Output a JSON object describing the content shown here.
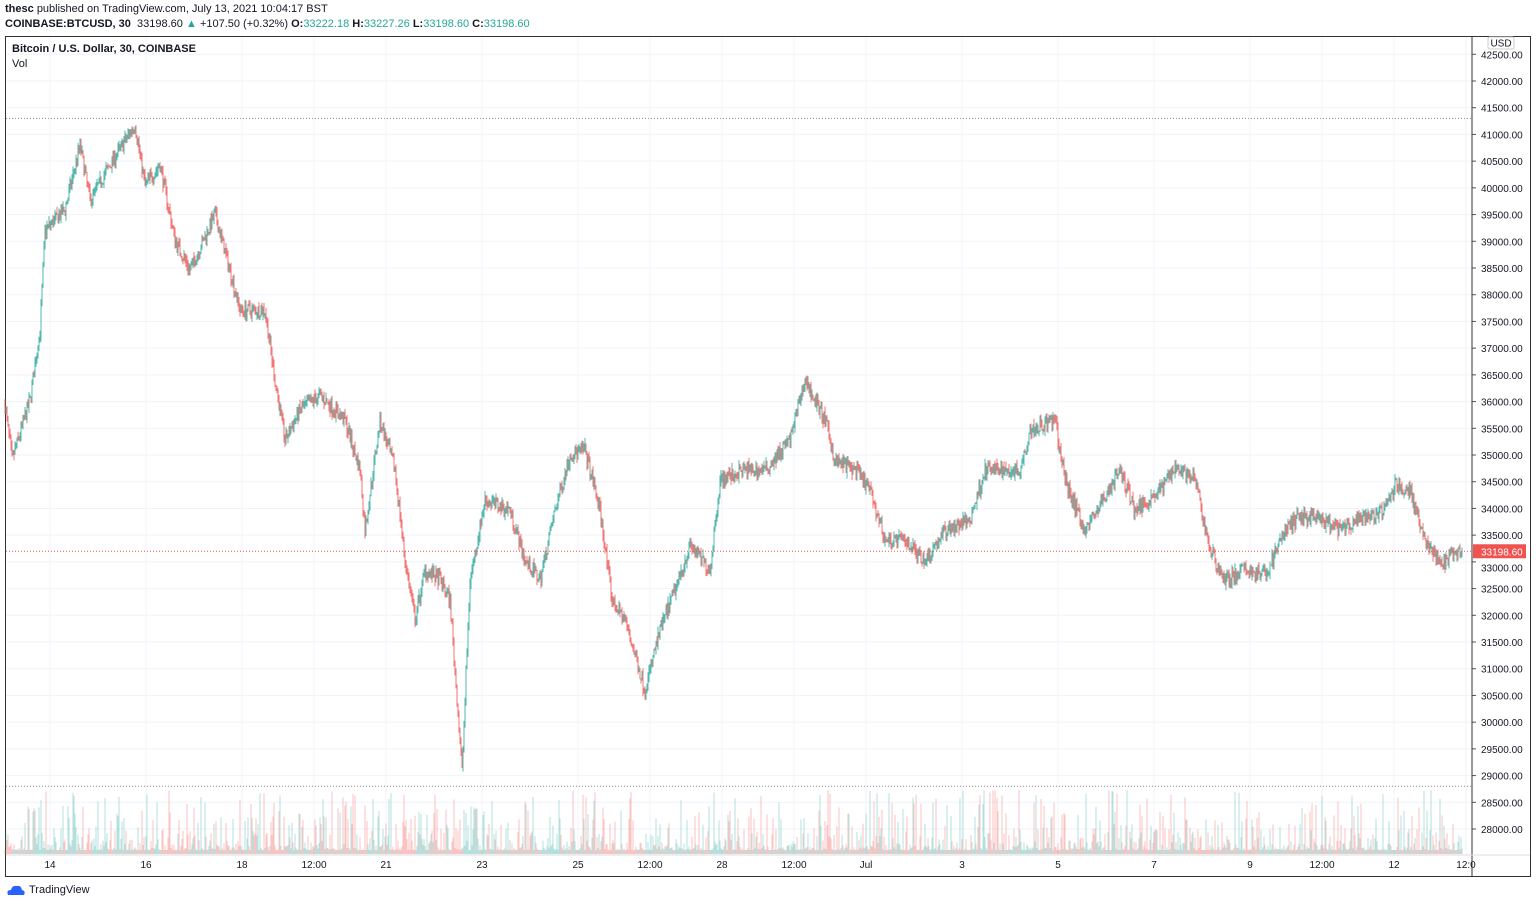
{
  "header": {
    "publisher": "thesc",
    "published_text": "published on TradingView.com, July 13, 2021 10:04:17 BST",
    "symbol": "COINBASE:BTCUSD, 30",
    "last": "33198.60",
    "change": "+107.50 (+0.32%)",
    "o_label": "O:",
    "open": "33222.18",
    "h_label": "H:",
    "high": "33227.26",
    "l_label": "L:",
    "low": "33198.60",
    "c_label": "C:",
    "close": "33198.60",
    "up_icon": "triangle-up-icon"
  },
  "chart_title": "Bitcoin / U.S. Dollar, 30, COINBASE",
  "volume_label": "Vol",
  "footer": {
    "brand": "TradingView",
    "icon": "tradingview-cloud-logo"
  },
  "colors": {
    "up": "#26a69a",
    "down": "#ef5350",
    "grid": "#f0f3fa"
  },
  "chart_data": {
    "type": "candlestick",
    "interval": "30",
    "currency": "USD",
    "y_ticks": [
      "42500.00",
      "42000.00",
      "41500.00",
      "41000.00",
      "40500.00",
      "40000.00",
      "39500.00",
      "39000.00",
      "38500.00",
      "38000.00",
      "37500.00",
      "37000.00",
      "36500.00",
      "36000.00",
      "35500.00",
      "35000.00",
      "34500.00",
      "34000.00",
      "33500.00",
      "33000.00",
      "32500.00",
      "32000.00",
      "31500.00",
      "31000.00",
      "30500.00",
      "30000.00",
      "29500.00",
      "29000.00",
      "28500.00",
      "28000.00"
    ],
    "x_ticks": [
      [
        "14",
        "2021-06-14T00:00"
      ],
      [
        "16",
        "2021-06-16T00:00"
      ],
      [
        "18",
        "2021-06-18T00:00"
      ],
      [
        "12:00",
        "2021-06-19T12:00"
      ],
      [
        "21",
        "2021-06-21T00:00"
      ],
      [
        "23",
        "2021-06-23T00:00"
      ],
      [
        "25",
        "2021-06-25T00:00"
      ],
      [
        "12:00",
        "2021-06-26T12:00"
      ],
      [
        "28",
        "2021-06-28T00:00"
      ],
      [
        "12:00",
        "2021-06-29T12:00"
      ],
      [
        "Jul",
        "2021-07-01T00:00"
      ],
      [
        "3",
        "2021-07-03T00:00"
      ],
      [
        "5",
        "2021-07-05T00:00"
      ],
      [
        "7",
        "2021-07-07T00:00"
      ],
      [
        "9",
        "2021-07-09T00:00"
      ],
      [
        "12:00",
        "2021-07-10T12:00"
      ],
      [
        "12",
        "2021-07-12T00:00"
      ],
      [
        "12:0",
        "2021-07-13T12:00"
      ]
    ],
    "current_price": "33198.60",
    "range_high": 41300,
    "range_low": 28800,
    "price_path": [
      [
        "2021-06-13T01:30",
        35935
      ],
      [
        "2021-06-13T05:00",
        34905
      ],
      [
        "2021-06-13T14:00",
        36030
      ],
      [
        "2021-06-13T19:00",
        37340
      ],
      [
        "2021-06-13T21:30",
        39210
      ],
      [
        "2021-06-14T07:30",
        39590
      ],
      [
        "2021-06-14T15:00",
        40800
      ],
      [
        "2021-06-14T20:00",
        39770
      ],
      [
        "2021-06-15T06:00",
        40430
      ],
      [
        "2021-06-15T18:30",
        41180
      ],
      [
        "2021-06-15T23:30",
        40050
      ],
      [
        "2021-06-16T07:00",
        40430
      ],
      [
        "2021-06-16T14:30",
        39020
      ],
      [
        "2021-06-16T22:00",
        38460
      ],
      [
        "2021-06-17T10:30",
        39500
      ],
      [
        "2021-06-17T18:00",
        38460
      ],
      [
        "2021-06-17T23:00",
        37710
      ],
      [
        "2021-06-18T11:30",
        37710
      ],
      [
        "2021-06-18T16:30",
        36400
      ],
      [
        "2021-06-18T21:30",
        35280
      ],
      [
        "2021-06-19T05:00",
        35840
      ],
      [
        "2021-06-19T15:00",
        36120
      ],
      [
        "2021-06-20T03:30",
        35650
      ],
      [
        "2021-06-20T11:00",
        34720
      ],
      [
        "2021-06-20T13:30",
        33590
      ],
      [
        "2021-06-20T21:00",
        35650
      ],
      [
        "2021-06-21T04:30",
        34720
      ],
      [
        "2021-06-21T09:30",
        33030
      ],
      [
        "2021-06-21T14:30",
        31910
      ],
      [
        "2021-06-21T19:30",
        32850
      ],
      [
        "2021-06-22T03:00",
        32660
      ],
      [
        "2021-06-22T08:00",
        32280
      ],
      [
        "2021-06-22T14:00",
        29100
      ],
      [
        "2021-06-22T18:00",
        32660
      ],
      [
        "2021-06-23T01:30",
        34160
      ],
      [
        "2021-06-23T14:00",
        33970
      ],
      [
        "2021-06-23T21:30",
        33030
      ],
      [
        "2021-06-24T05:00",
        32660
      ],
      [
        "2021-06-24T12:30",
        33970
      ],
      [
        "2021-06-24T20:00",
        35000
      ],
      [
        "2021-06-25T03:30",
        35090
      ],
      [
        "2021-06-25T11:00",
        33970
      ],
      [
        "2021-06-25T17:00",
        32280
      ],
      [
        "2021-06-25T23:30",
        31910
      ],
      [
        "2021-06-26T09:30",
        30600
      ],
      [
        "2021-06-26T17:00",
        31720
      ],
      [
        "2021-06-27T00:30",
        32470
      ],
      [
        "2021-06-27T08:00",
        33310
      ],
      [
        "2021-06-27T18:00",
        32850
      ],
      [
        "2021-06-27T23:00",
        34530
      ],
      [
        "2021-06-28T11:30",
        34720
      ],
      [
        "2021-06-28T21:30",
        34720
      ],
      [
        "2021-06-29T10:00",
        35280
      ],
      [
        "2021-06-29T17:30",
        36400
      ],
      [
        "2021-06-30T03:30",
        35650
      ],
      [
        "2021-06-30T08:30",
        34900
      ],
      [
        "2021-06-30T18:30",
        34720
      ],
      [
        "2021-07-01T02:00",
        34340
      ],
      [
        "2021-07-01T09:30",
        33410
      ],
      [
        "2021-07-01T19:30",
        33410
      ],
      [
        "2021-07-02T05:30",
        33030
      ],
      [
        "2021-07-02T15:30",
        33590
      ],
      [
        "2021-07-03T04:00",
        33780
      ],
      [
        "2021-07-03T11:30",
        34720
      ],
      [
        "2021-07-04T05:00",
        34720
      ],
      [
        "2021-07-04T10:00",
        35470
      ],
      [
        "2021-07-04T22:30",
        35650
      ],
      [
        "2021-07-05T03:30",
        34530
      ],
      [
        "2021-07-05T13:30",
        33590
      ],
      [
        "2021-07-05T21:00",
        34060
      ],
      [
        "2021-07-06T07:00",
        34720
      ],
      [
        "2021-07-06T14:30",
        33970
      ],
      [
        "2021-07-07T03:00",
        34340
      ],
      [
        "2021-07-07T10:30",
        34810
      ],
      [
        "2021-07-07T20:30",
        34530
      ],
      [
        "2021-07-08T04:00",
        33220
      ],
      [
        "2021-07-08T11:30",
        32660
      ],
      [
        "2021-07-08T21:30",
        32850
      ],
      [
        "2021-07-09T07:30",
        32750
      ],
      [
        "2021-07-09T17:30",
        33590
      ],
      [
        "2021-07-10T01:00",
        33870
      ],
      [
        "2021-07-10T11:00",
        33780
      ],
      [
        "2021-07-10T21:00",
        33590
      ],
      [
        "2021-07-11T07:00",
        33780
      ],
      [
        "2021-07-11T19:30",
        33970
      ],
      [
        "2021-07-12T00:30",
        34440
      ],
      [
        "2021-07-12T08:00",
        34340
      ],
      [
        "2021-07-12T15:30",
        33410
      ],
      [
        "2021-07-12T23:00",
        32940
      ],
      [
        "2021-07-13T10:00",
        33198.6
      ]
    ]
  }
}
